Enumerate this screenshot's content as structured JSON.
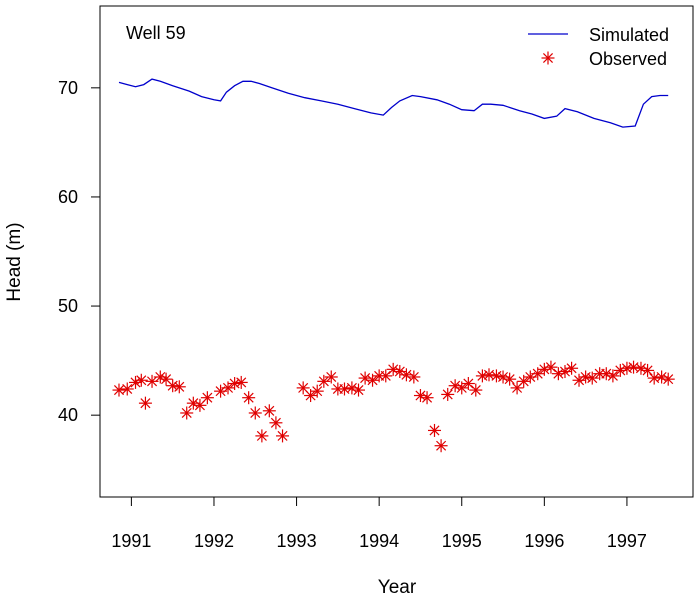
{
  "chart_data": {
    "type": "line",
    "title": "Well 59",
    "xlabel": "Year",
    "ylabel": "Head (m)",
    "xlim": [
      1990.62,
      1997.8
    ],
    "ylim": [
      32.5,
      77.5
    ],
    "xticks": [
      1991,
      1992,
      1993,
      1994,
      1995,
      1996,
      1997
    ],
    "yticks": [
      40,
      50,
      60,
      70
    ],
    "grid": false,
    "legend_position": "top-right",
    "colors": {
      "simulated": "#0000cc",
      "observed": "#e00000"
    },
    "series": [
      {
        "name": "Simulated",
        "style": "line",
        "x": [
          1990.85,
          1990.95,
          1991.05,
          1991.15,
          1991.25,
          1991.35,
          1991.5,
          1991.7,
          1991.85,
          1992.0,
          1992.08,
          1992.15,
          1992.25,
          1992.35,
          1992.45,
          1992.55,
          1992.7,
          1992.9,
          1993.1,
          1993.3,
          1993.5,
          1993.7,
          1993.9,
          1994.05,
          1994.15,
          1994.25,
          1994.4,
          1994.5,
          1994.7,
          1994.85,
          1995.0,
          1995.15,
          1995.25,
          1995.35,
          1995.5,
          1995.7,
          1995.85,
          1996.0,
          1996.15,
          1996.25,
          1996.4,
          1996.6,
          1996.8,
          1996.95,
          1997.1,
          1997.2,
          1997.3,
          1997.4,
          1997.5
        ],
        "y": [
          70.5,
          70.3,
          70.1,
          70.3,
          70.8,
          70.6,
          70.2,
          69.7,
          69.2,
          68.9,
          68.8,
          69.6,
          70.2,
          70.6,
          70.6,
          70.4,
          70.0,
          69.5,
          69.1,
          68.8,
          68.5,
          68.1,
          67.7,
          67.5,
          68.2,
          68.8,
          69.3,
          69.2,
          68.9,
          68.5,
          68.0,
          67.9,
          68.5,
          68.5,
          68.4,
          67.9,
          67.6,
          67.2,
          67.4,
          68.1,
          67.8,
          67.2,
          66.8,
          66.4,
          66.5,
          68.5,
          69.2,
          69.3,
          69.3
        ]
      },
      {
        "name": "Observed",
        "style": "points",
        "x": [
          1990.85,
          1990.95,
          1991.05,
          1991.12,
          1991.17,
          1991.25,
          1991.35,
          1991.42,
          1991.5,
          1991.58,
          1991.67,
          1991.75,
          1991.83,
          1991.92,
          1992.08,
          1992.17,
          1992.25,
          1992.33,
          1992.42,
          1992.5,
          1992.58,
          1992.67,
          1992.75,
          1992.83,
          1993.08,
          1993.17,
          1993.25,
          1993.33,
          1993.42,
          1993.5,
          1993.58,
          1993.67,
          1993.75,
          1993.83,
          1993.92,
          1994.0,
          1994.08,
          1994.17,
          1994.25,
          1994.33,
          1994.42,
          1994.5,
          1994.58,
          1994.67,
          1994.75,
          1994.83,
          1994.92,
          1995.0,
          1995.08,
          1995.17,
          1995.25,
          1995.33,
          1995.42,
          1995.5,
          1995.58,
          1995.67,
          1995.75,
          1995.83,
          1995.92,
          1996.0,
          1996.08,
          1996.17,
          1996.25,
          1996.33,
          1996.42,
          1996.5,
          1996.58,
          1996.67,
          1996.75,
          1996.83,
          1996.92,
          1997.0,
          1997.08,
          1997.17,
          1997.25,
          1997.33,
          1997.42,
          1997.5
        ],
        "y": [
          42.3,
          42.4,
          43.0,
          43.2,
          41.1,
          43.1,
          43.5,
          43.3,
          42.7,
          42.6,
          40.2,
          41.1,
          40.9,
          41.6,
          42.2,
          42.5,
          42.9,
          43.0,
          41.6,
          40.2,
          38.1,
          40.4,
          39.3,
          38.1,
          42.5,
          41.8,
          42.2,
          43.1,
          43.5,
          42.4,
          42.4,
          42.5,
          42.3,
          43.4,
          43.2,
          43.6,
          43.6,
          44.2,
          44.0,
          43.7,
          43.5,
          41.8,
          41.6,
          38.6,
          37.2,
          41.9,
          42.7,
          42.5,
          42.9,
          42.3,
          43.6,
          43.7,
          43.6,
          43.5,
          43.3,
          42.5,
          43.1,
          43.5,
          43.8,
          44.2,
          44.4,
          43.8,
          44.0,
          44.3,
          43.2,
          43.5,
          43.4,
          43.8,
          43.8,
          43.6,
          44.1,
          44.3,
          44.4,
          44.3,
          44.1,
          43.4,
          43.5,
          43.3
        ]
      }
    ]
  }
}
